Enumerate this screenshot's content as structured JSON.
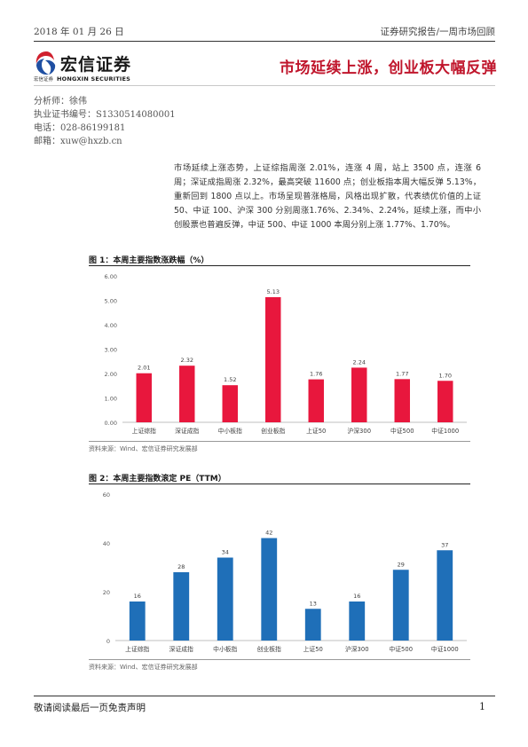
{
  "header": {
    "date": "2018 年 01 月 26 日",
    "report_type": "证券研究报告/一周市场回顾"
  },
  "logo": {
    "name": "宏信证券",
    "small_cn": "宏信证券",
    "english": "HONGXIN SECURITIES",
    "colors": {
      "red": "#d0202e",
      "blue": "#1f4fa2"
    }
  },
  "title": "市场延续上涨，创业板大幅反弹",
  "analyst": {
    "name_line": "分析师：徐伟",
    "license_line": "执业证书编号：S1330514080001",
    "phone_line": "电话：028-86199181",
    "email_line": "邮箱：xuw@hxzb.cn"
  },
  "summary": "市场延续上涨态势，上证综指周涨 2.01%，连涨 4 周，站上 3500 点，连涨 6 周；深证成指周涨 2.32%，最高突破 11600 点；创业板指本周大幅反弹 5.13%，重新回到 1800 点以上。市场呈现普涨格局，风格出现扩散，代表绩优价值的上证 50、中证 100、沪深 300 分别周涨1.76%、2.34%、2.24%，延续上涨，而中小创股票也普遍反弹，中证 500、中证 1000 本周分别上涨 1.77%、1.70%。",
  "figure1": {
    "title": "图 1：本周主要指数涨跌幅（%）",
    "source": "资料来源：Wind、宏信证券研究发展部",
    "color": "#e8173d"
  },
  "figure2": {
    "title": "图 2：本周主要指数滚定 PE（TTM）",
    "source": "资料来源：Wind、宏信证券研究发展部",
    "color": "#1f6fb8"
  },
  "chart_data": [
    {
      "type": "bar",
      "title": "图 1：本周主要指数涨跌幅（%）",
      "categories": [
        "上证综指",
        "深证成指",
        "中小板指",
        "创业板指",
        "上证50",
        "沪深300",
        "中证500",
        "中证1000"
      ],
      "values": [
        2.01,
        2.32,
        1.52,
        5.13,
        1.76,
        2.24,
        1.77,
        1.7
      ],
      "value_labels": [
        "2.01",
        "2.32",
        "1.52",
        "5.13",
        "1.76",
        "2.24",
        "1.77",
        "1.70"
      ],
      "ylim": [
        0,
        6
      ],
      "yticks": [
        "0.00",
        "1.00",
        "2.00",
        "3.00",
        "4.00",
        "5.00",
        "6.00"
      ],
      "ytick_values": [
        0,
        1,
        2,
        3,
        4,
        5,
        6
      ],
      "grid": false,
      "legend": "none",
      "color": "#e8173d"
    },
    {
      "type": "bar",
      "title": "图 2：本周主要指数滚定 PE（TTM）",
      "categories": [
        "上证综指",
        "深证成指",
        "中小板指",
        "创业板指",
        "上证50",
        "沪深300",
        "中证500",
        "中证1000"
      ],
      "values": [
        16,
        28,
        34,
        42,
        13,
        16,
        29,
        37
      ],
      "value_labels": [
        "16",
        "28",
        "34",
        "42",
        "13",
        "16",
        "29",
        "37"
      ],
      "ylim": [
        0,
        60
      ],
      "yticks": [
        "0",
        "20",
        "40",
        "60"
      ],
      "ytick_values": [
        0,
        20,
        40,
        60
      ],
      "grid": false,
      "legend": "none",
      "color": "#1f6fb8"
    }
  ],
  "footer": {
    "disclaimer": "敬请阅读最后一页免责声明",
    "page_number": "1"
  }
}
